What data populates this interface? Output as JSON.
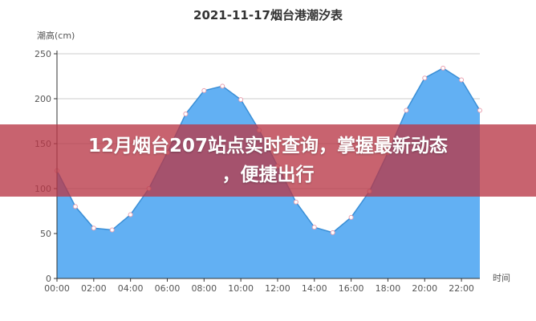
{
  "chart_data": {
    "type": "area",
    "title": "2021-11-17烟台港潮汐表",
    "ylabel": "潮高(cm)",
    "xlabel": "时间",
    "ylim": [
      0,
      250
    ],
    "yticks": [
      0,
      50,
      100,
      150,
      200,
      250
    ],
    "xtick_labels": [
      "00:00",
      "02:00",
      "04:00",
      "06:00",
      "08:00",
      "10:00",
      "12:00",
      "14:00",
      "16:00",
      "18:00",
      "20:00",
      "22:00"
    ],
    "x": [
      0,
      1,
      2,
      3,
      4,
      5,
      6,
      7,
      8,
      9,
      10,
      11,
      12,
      13,
      14,
      15,
      16,
      17,
      18,
      19,
      20,
      21,
      22,
      23
    ],
    "values": [
      120,
      80,
      56,
      54,
      71,
      100,
      140,
      183,
      209,
      214,
      199,
      165,
      125,
      85,
      57,
      51,
      68,
      97,
      140,
      187,
      223,
      234,
      221,
      187
    ],
    "grid": "horizontal",
    "colors": {
      "fill": "#62b0f3",
      "line": "#3b8fd6",
      "marker": "#e8a0b0"
    }
  },
  "banner": {
    "line1": "12月烟台207站点实时查询，掌握最新动态",
    "line2": "，便捷出行",
    "color": "#b93746"
  }
}
